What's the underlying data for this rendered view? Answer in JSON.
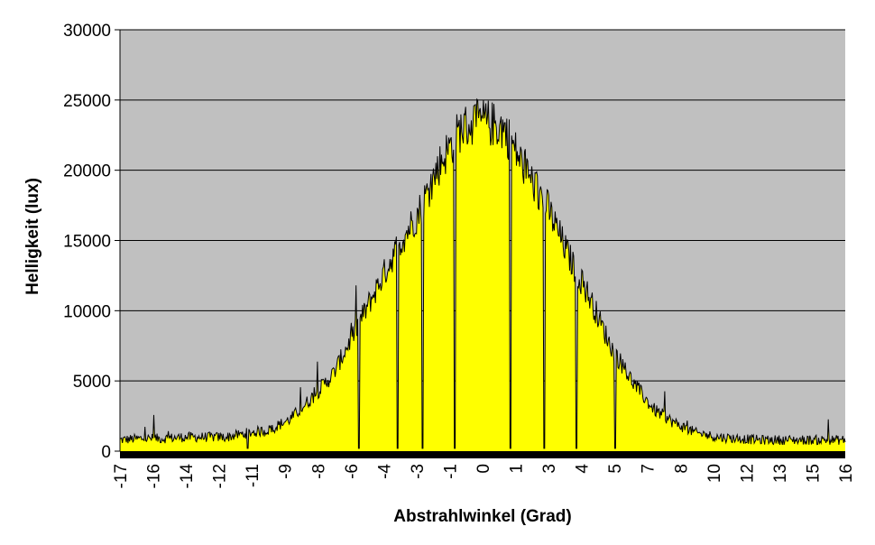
{
  "chart_data": {
    "type": "area",
    "title": "",
    "xlabel": "Abstrahlwinkel (Grad)",
    "ylabel": "Helligkeit (lux)",
    "ylim": [
      0,
      30000
    ],
    "y_ticks": [
      0,
      5000,
      10000,
      15000,
      20000,
      25000,
      30000
    ],
    "x_tick_labels": [
      "-17",
      "-16",
      "-14",
      "-12",
      "-11",
      "-9",
      "-8",
      "-6",
      "-4",
      "-3",
      "-1",
      "0",
      "1",
      "3",
      "4",
      "5",
      "7",
      "8",
      "10",
      "12",
      "13",
      "15",
      "16"
    ],
    "grid": "horizontal",
    "legend": "none",
    "series": [
      {
        "x": [
          -17,
          -16,
          -15,
          -14,
          -13,
          -12,
          -11,
          -10,
          -9,
          -8,
          -7,
          -6,
          -5,
          -4,
          -3,
          -2,
          -1,
          0,
          1,
          2,
          3,
          4,
          5,
          6,
          7,
          8,
          9,
          10,
          11,
          12,
          13,
          14,
          15,
          16,
          17
        ],
        "values": [
          800,
          900,
          900,
          1000,
          1000,
          1000,
          1300,
          1500,
          2300,
          3800,
          5500,
          8500,
          11500,
          14500,
          17000,
          20500,
          23000,
          23500,
          23000,
          20000,
          17500,
          14000,
          11000,
          7500,
          5000,
          3000,
          2000,
          1300,
          1000,
          900,
          800,
          800,
          800,
          800,
          800
        ],
        "dips": [
          -11,
          -5.8,
          -4,
          -2.8,
          -1.3,
          1.3,
          2.9,
          4.4,
          6.2
        ]
      }
    ],
    "colors": {
      "plot_background": "#c0c0c0",
      "fill": "#ffff00",
      "line": "#000000",
      "gridline": "#000000",
      "x_axis_band": "#000000"
    }
  }
}
